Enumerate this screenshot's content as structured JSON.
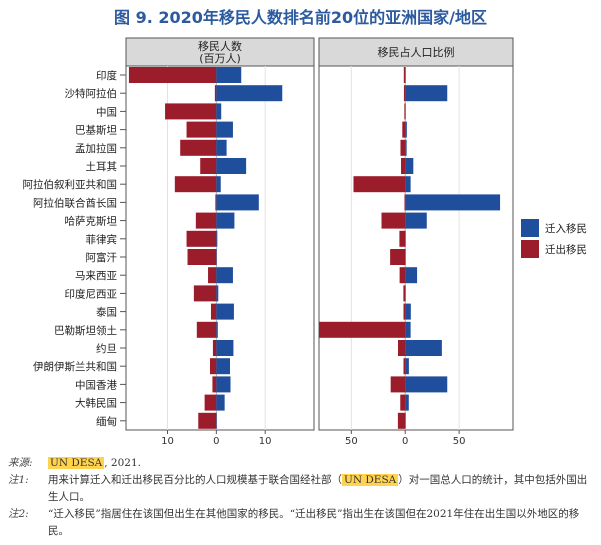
{
  "title": "图 9. 2020年移民人数排名前20位的亚洲国家/地区",
  "colors": {
    "immigrants": "#1f4e9c",
    "emigrants": "#9b1c2a",
    "panel_header": "#d9d9d9"
  },
  "chart_data": [
    {
      "type": "bar",
      "orientation": "horizontal",
      "title": "移民人数\n(百万人)",
      "xlim": [
        -18.5,
        20
      ],
      "xticks": [
        -10,
        0,
        10
      ],
      "xtick_labels": [
        "10",
        "0",
        "10"
      ],
      "categories": [
        "印度",
        "沙特阿拉伯",
        "中国",
        "巴基斯坦",
        "孟加拉国",
        "土耳其",
        "阿拉伯叙利亚共和国",
        "阿拉伯联合酋长国",
        "哈萨克斯坦",
        "菲律宾",
        "阿富汗",
        "马来西亚",
        "印度尼西亚",
        "泰国",
        "巴勒斯坦领土",
        "约旦",
        "伊朗伊斯兰共和国",
        "中国香港",
        "大韩民国",
        "缅甸"
      ],
      "series": [
        {
          "name": "迁入移民",
          "values": [
            5.1,
            13.5,
            1.0,
            3.4,
            2.1,
            6.1,
            0.9,
            8.7,
            3.7,
            0.2,
            0.1,
            3.4,
            0.4,
            3.6,
            0.3,
            3.5,
            2.8,
            2.9,
            1.7,
            0.1
          ]
        },
        {
          "name": "迁出移民",
          "values": [
            17.9,
            0.3,
            10.5,
            6.1,
            7.4,
            3.3,
            8.5,
            0.2,
            4.2,
            6.1,
            5.9,
            1.7,
            4.6,
            1.1,
            4.0,
            0.7,
            1.3,
            0.8,
            2.4,
            3.7
          ]
        }
      ]
    },
    {
      "type": "bar",
      "orientation": "horizontal",
      "title": "移民占人口比例",
      "xlim": [
        -80,
        100
      ],
      "xticks": [
        -50,
        0,
        50
      ],
      "xtick_labels": [
        "50",
        "0",
        "50"
      ],
      "categories": [
        "印度",
        "沙特阿拉伯",
        "中国",
        "巴基斯坦",
        "孟加拉国",
        "土耳其",
        "阿拉伯叙利亚共和国",
        "阿拉伯联合酋长国",
        "哈萨克斯坦",
        "菲律宾",
        "阿富汗",
        "马来西亚",
        "印度尼西亚",
        "泰国",
        "巴勒斯坦领土",
        "约旦",
        "伊朗伊斯兰共和国",
        "中国香港",
        "大韩民国",
        "缅甸"
      ],
      "series": [
        {
          "name": "迁入移民",
          "values": [
            0.4,
            39,
            0.1,
            1.5,
            1.3,
            7.5,
            5,
            88,
            20,
            0.2,
            0.4,
            11,
            0.1,
            5.2,
            5,
            34,
            3.4,
            39,
            3.3,
            0.1
          ]
        },
        {
          "name": "迁出移民",
          "values": [
            1.3,
            1.2,
            0.8,
            2.7,
            4.4,
            3.9,
            48,
            0.7,
            22,
            5.4,
            14,
            5.2,
            1.7,
            1.6,
            80,
            6.7,
            1.6,
            13.5,
            4.6,
            6.8
          ]
        }
      ]
    }
  ],
  "legend": {
    "immigrants": "迁入移民",
    "emigrants": "迁出移民"
  },
  "notes": {
    "source_label": "来源:",
    "source_highlight": "UN DESA",
    "source_rest": ", 2021.",
    "note1_label": "注1:",
    "note1_pre": "用来计算迁入和迁出移民百分比的人口规模基于联合国经社部（",
    "note1_highlight": "UN DESA",
    "note1_post": "）对一国总人口的统计，其中包括外国出生人口。",
    "note2_label": "注2:",
    "note2_text": "“迁入移民”指居住在该国但出生在其他国家的移民。“迁出移民”指出生在该国但在2021年住在出生国以外地区的移民。"
  }
}
